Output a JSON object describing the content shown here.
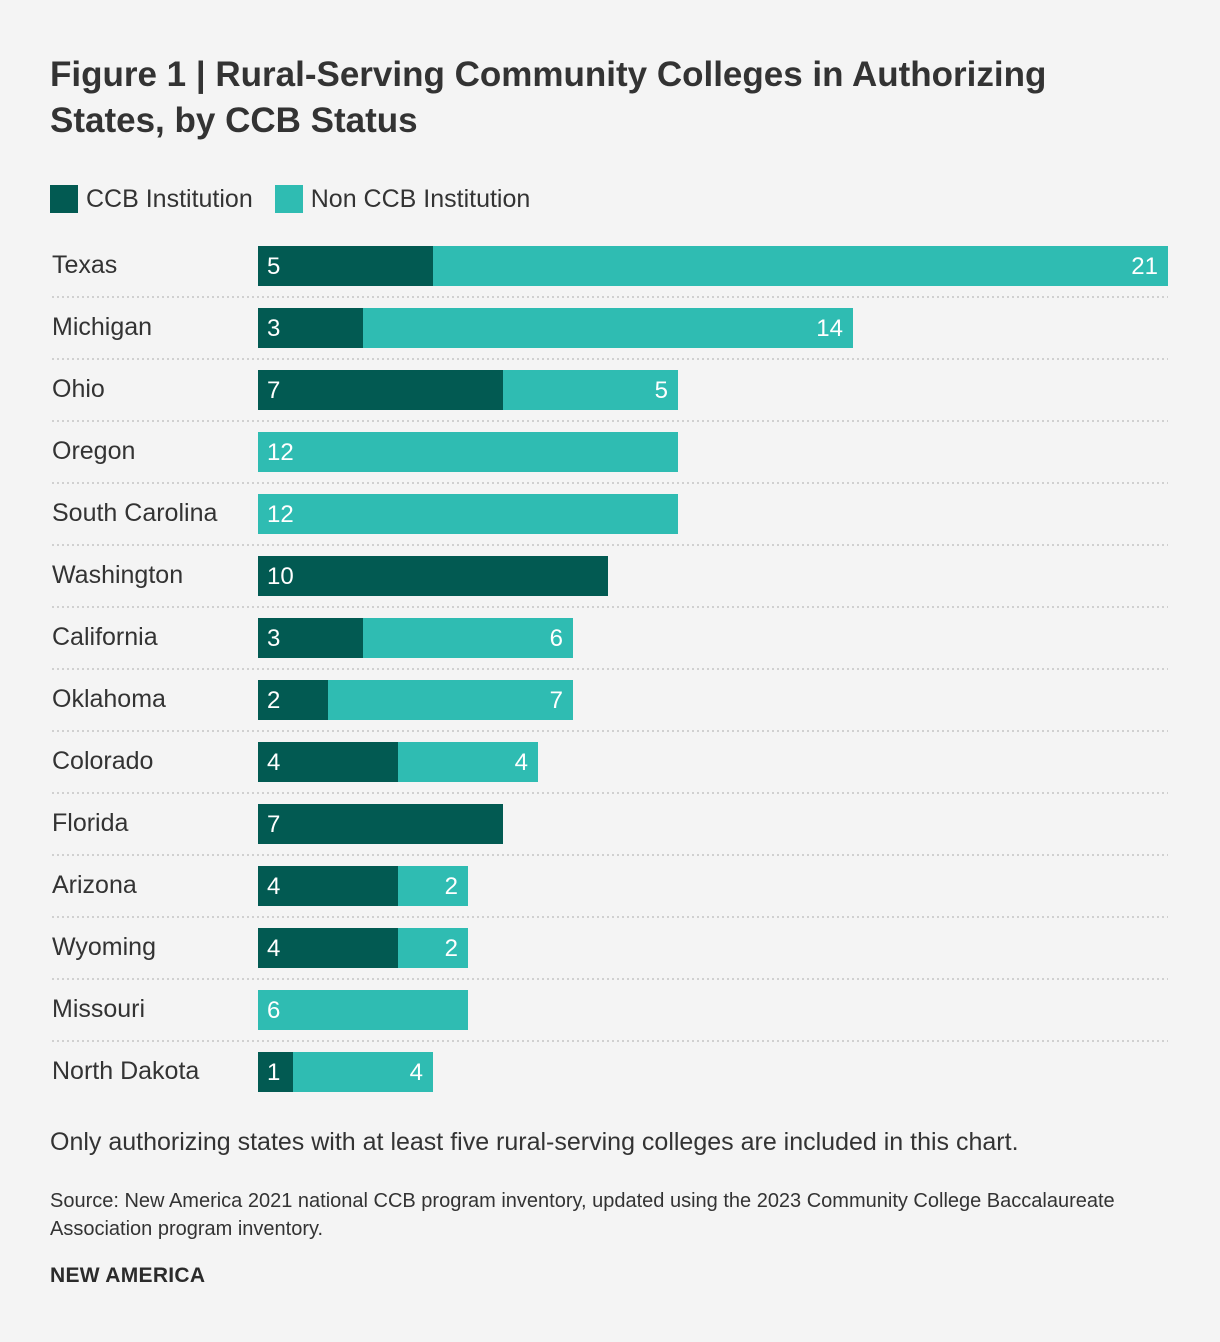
{
  "chart_data": {
    "type": "bar",
    "orientation": "horizontal",
    "stacked": true,
    "title": "Figure 1 | Rural-Serving Community Colleges in Authorizing States, by CCB Status",
    "categories": [
      "Texas",
      "Michigan",
      "Ohio",
      "Oregon",
      "South Carolina",
      "Washington",
      "California",
      "Oklahoma",
      "Colorado",
      "Florida",
      "Arizona",
      "Wyoming",
      "Missouri",
      "North Dakota"
    ],
    "series": [
      {
        "name": "CCB Institution",
        "color": "#025a52",
        "values": [
          5,
          3,
          7,
          0,
          0,
          10,
          3,
          2,
          4,
          7,
          4,
          4,
          0,
          1
        ]
      },
      {
        "name": "Non CCB Institution",
        "color": "#2fbcb2",
        "values": [
          21,
          14,
          5,
          12,
          12,
          0,
          6,
          7,
          4,
          0,
          2,
          2,
          6,
          4
        ]
      }
    ],
    "xlim": [
      0,
      26
    ],
    "grid": false,
    "legend": "top-left"
  },
  "note": "Only authorizing states with at least five rural-serving colleges are included in this chart.",
  "source": "Source: New America 2021 national CCB program inventory, updated using the 2023 Community College Baccalaureate Association program inventory.",
  "brand": "NEW AMERICA"
}
